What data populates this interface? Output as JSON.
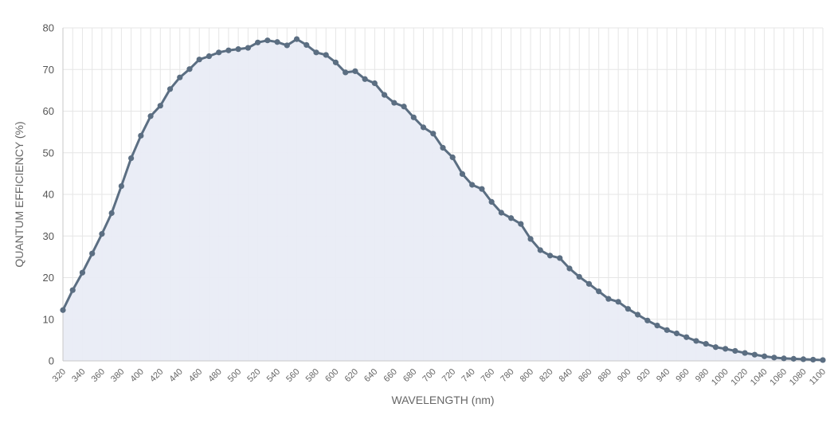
{
  "chart_data": {
    "type": "area",
    "xlabel": "WAVELENGTH (nm)",
    "ylabel": "QUANTUM EFFICIENCY (%)",
    "xlim": [
      320,
      1100
    ],
    "ylim": [
      0,
      80
    ],
    "x_ticks": [
      320,
      340,
      360,
      380,
      400,
      420,
      440,
      460,
      480,
      500,
      520,
      540,
      560,
      580,
      600,
      620,
      640,
      660,
      680,
      700,
      720,
      740,
      760,
      780,
      800,
      820,
      840,
      860,
      880,
      900,
      920,
      940,
      960,
      980,
      1000,
      1020,
      1040,
      1060,
      1080,
      1100
    ],
    "y_ticks": [
      0,
      10,
      20,
      30,
      40,
      50,
      60,
      70,
      80
    ],
    "grid": true,
    "colors": {
      "line": "#5b6e82",
      "fill": "#e9ecf5",
      "grid": "#e6e6e6"
    },
    "x": [
      320,
      330,
      340,
      350,
      360,
      370,
      380,
      390,
      400,
      410,
      420,
      430,
      440,
      450,
      460,
      470,
      480,
      490,
      500,
      510,
      520,
      530,
      540,
      550,
      560,
      570,
      580,
      590,
      600,
      610,
      620,
      630,
      640,
      650,
      660,
      670,
      680,
      690,
      700,
      710,
      720,
      730,
      740,
      750,
      760,
      770,
      780,
      790,
      800,
      810,
      820,
      830,
      840,
      850,
      860,
      870,
      880,
      890,
      900,
      910,
      920,
      930,
      940,
      950,
      960,
      970,
      980,
      990,
      1000,
      1010,
      1020,
      1030,
      1040,
      1050,
      1060,
      1070,
      1080,
      1090,
      1100
    ],
    "y": [
      12.2,
      17.0,
      21.2,
      25.8,
      30.5,
      35.5,
      42.0,
      48.7,
      54.1,
      58.8,
      61.3,
      65.3,
      68.1,
      70.1,
      72.4,
      73.2,
      74.1,
      74.6,
      74.9,
      75.2,
      76.5,
      77.0,
      76.6,
      75.8,
      77.3,
      75.9,
      74.1,
      73.5,
      71.7,
      69.3,
      69.6,
      67.7,
      66.7,
      63.9,
      62.0,
      61.1,
      58.5,
      56.1,
      54.6,
      51.2,
      48.9,
      44.9,
      42.3,
      41.3,
      38.2,
      35.6,
      34.3,
      32.9,
      29.3,
      26.6,
      25.3,
      24.7,
      22.2,
      20.2,
      18.5,
      16.7,
      14.9,
      14.2,
      12.5,
      11.1,
      9.7,
      8.5,
      7.4,
      6.6,
      5.7,
      4.8,
      4.1,
      3.3,
      2.9,
      2.4,
      1.9,
      1.5,
      1.1,
      0.8,
      0.6,
      0.5,
      0.4,
      0.3,
      0.2
    ]
  }
}
